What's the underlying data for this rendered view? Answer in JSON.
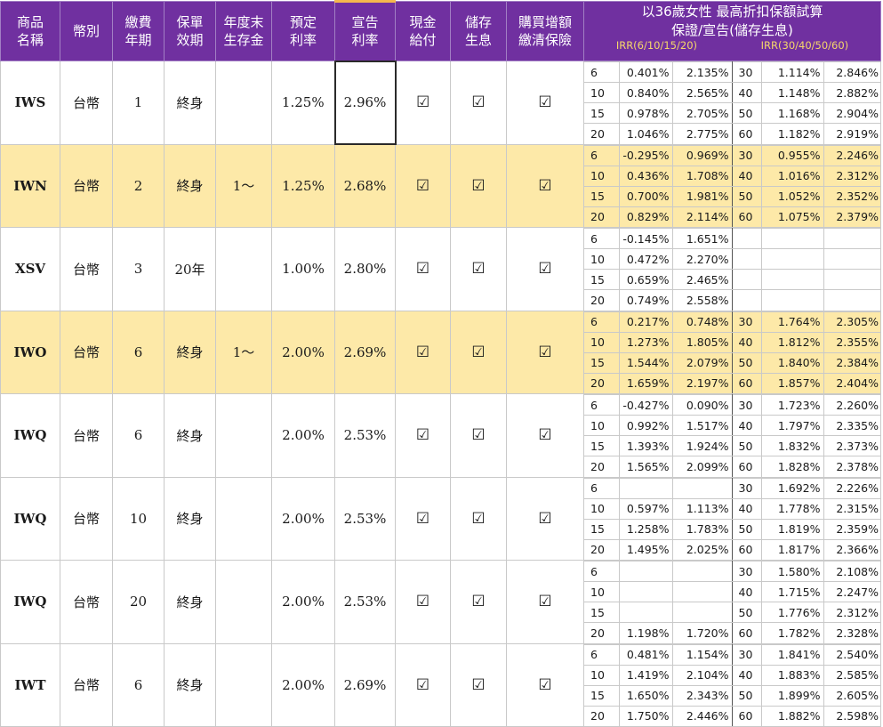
{
  "header": {
    "product_name": "商品\n名稱",
    "currency": "幣別",
    "payment_term": "繳費\n年期",
    "policy_term": "保單\n效期",
    "survival_benefit": "年度末\n生存金",
    "assumed_rate": "預定\n利率",
    "declared_rate": "宣告\n利率",
    "cash_payment": "現金\n給付",
    "accumulate_interest": "儲存\n生息",
    "paid_up": "購買增額\n繳清保險",
    "irr_title_line1": "以36歲女性 最高折扣保額試算",
    "irr_title_line2": "保證/宣告(儲存生息)",
    "irr_left_label": "IRR(6/10/15/20)",
    "irr_right_label": "IRR(30/40/50/60)"
  },
  "check_glyph": "☑",
  "products": [
    {
      "code": "IWS",
      "currency": "台幣",
      "payment_term": "1",
      "policy_term": "終身",
      "survival_benefit": "",
      "assumed_rate": "1.25%",
      "declared_rate": "2.96%",
      "highlight": false,
      "irr": [
        [
          "6",
          "0.401%",
          "2.135%",
          "30",
          "1.114%",
          "2.846%"
        ],
        [
          "10",
          "0.840%",
          "2.565%",
          "40",
          "1.148%",
          "2.882%"
        ],
        [
          "15",
          "0.978%",
          "2.705%",
          "50",
          "1.168%",
          "2.904%"
        ],
        [
          "20",
          "1.046%",
          "2.775%",
          "60",
          "1.182%",
          "2.919%"
        ]
      ]
    },
    {
      "code": "IWN",
      "currency": "台幣",
      "payment_term": "2",
      "policy_term": "終身",
      "survival_benefit": "1～",
      "assumed_rate": "1.25%",
      "declared_rate": "2.68%",
      "highlight": true,
      "irr": [
        [
          "6",
          "-0.295%",
          "0.969%",
          "30",
          "0.955%",
          "2.246%"
        ],
        [
          "10",
          "0.436%",
          "1.708%",
          "40",
          "1.016%",
          "2.312%"
        ],
        [
          "15",
          "0.700%",
          "1.981%",
          "50",
          "1.052%",
          "2.352%"
        ],
        [
          "20",
          "0.829%",
          "2.114%",
          "60",
          "1.075%",
          "2.379%"
        ]
      ]
    },
    {
      "code": "XSV",
      "currency": "台幣",
      "payment_term": "3",
      "policy_term": "20年",
      "survival_benefit": "",
      "assumed_rate": "1.00%",
      "declared_rate": "2.80%",
      "highlight": false,
      "irr": [
        [
          "6",
          "-0.145%",
          "1.651%",
          "",
          "",
          ""
        ],
        [
          "10",
          "0.472%",
          "2.270%",
          "",
          "",
          ""
        ],
        [
          "15",
          "0.659%",
          "2.465%",
          "",
          "",
          ""
        ],
        [
          "20",
          "0.749%",
          "2.558%",
          "",
          "",
          ""
        ]
      ]
    },
    {
      "code": "IWO",
      "currency": "台幣",
      "payment_term": "6",
      "policy_term": "終身",
      "survival_benefit": "1～",
      "assumed_rate": "2.00%",
      "declared_rate": "2.69%",
      "highlight": true,
      "irr": [
        [
          "6",
          "0.217%",
          "0.748%",
          "30",
          "1.764%",
          "2.305%"
        ],
        [
          "10",
          "1.273%",
          "1.805%",
          "40",
          "1.812%",
          "2.355%"
        ],
        [
          "15",
          "1.544%",
          "2.079%",
          "50",
          "1.840%",
          "2.384%"
        ],
        [
          "20",
          "1.659%",
          "2.197%",
          "60",
          "1.857%",
          "2.404%"
        ]
      ]
    },
    {
      "code": "IWQ",
      "currency": "台幣",
      "payment_term": "6",
      "policy_term": "終身",
      "survival_benefit": "",
      "assumed_rate": "2.00%",
      "declared_rate": "2.53%",
      "highlight": false,
      "irr": [
        [
          "6",
          "-0.427%",
          "0.090%",
          "30",
          "1.723%",
          "2.260%"
        ],
        [
          "10",
          "0.992%",
          "1.517%",
          "40",
          "1.797%",
          "2.335%"
        ],
        [
          "15",
          "1.393%",
          "1.924%",
          "50",
          "1.832%",
          "2.373%"
        ],
        [
          "20",
          "1.565%",
          "2.099%",
          "60",
          "1.828%",
          "2.378%"
        ]
      ]
    },
    {
      "code": "IWQ",
      "currency": "台幣",
      "payment_term": "10",
      "policy_term": "終身",
      "survival_benefit": "",
      "assumed_rate": "2.00%",
      "declared_rate": "2.53%",
      "highlight": false,
      "irr": [
        [
          "6",
          "",
          "",
          "30",
          "1.692%",
          "2.226%"
        ],
        [
          "10",
          "0.597%",
          "1.113%",
          "40",
          "1.778%",
          "2.315%"
        ],
        [
          "15",
          "1.258%",
          "1.783%",
          "50",
          "1.819%",
          "2.359%"
        ],
        [
          "20",
          "1.495%",
          "2.025%",
          "60",
          "1.817%",
          "2.366%"
        ]
      ]
    },
    {
      "code": "IWQ",
      "currency": "台幣",
      "payment_term": "20",
      "policy_term": "終身",
      "survival_benefit": "",
      "assumed_rate": "2.00%",
      "declared_rate": "2.53%",
      "highlight": false,
      "irr": [
        [
          "6",
          "",
          "",
          "30",
          "1.580%",
          "2.108%"
        ],
        [
          "10",
          "",
          "",
          "40",
          "1.715%",
          "2.247%"
        ],
        [
          "15",
          "",
          "",
          "50",
          "1.776%",
          "2.312%"
        ],
        [
          "20",
          "1.198%",
          "1.720%",
          "60",
          "1.782%",
          "2.328%"
        ]
      ]
    },
    {
      "code": "IWT",
      "currency": "台幣",
      "payment_term": "6",
      "policy_term": "終身",
      "survival_benefit": "",
      "assumed_rate": "2.00%",
      "declared_rate": "2.69%",
      "highlight": false,
      "irr": [
        [
          "6",
          "0.481%",
          "1.154%",
          "30",
          "1.841%",
          "2.540%"
        ],
        [
          "10",
          "1.419%",
          "2.104%",
          "40",
          "1.883%",
          "2.585%"
        ],
        [
          "15",
          "1.650%",
          "2.343%",
          "50",
          "1.899%",
          "2.605%"
        ],
        [
          "20",
          "1.750%",
          "2.446%",
          "60",
          "1.882%",
          "2.598%"
        ]
      ]
    }
  ]
}
